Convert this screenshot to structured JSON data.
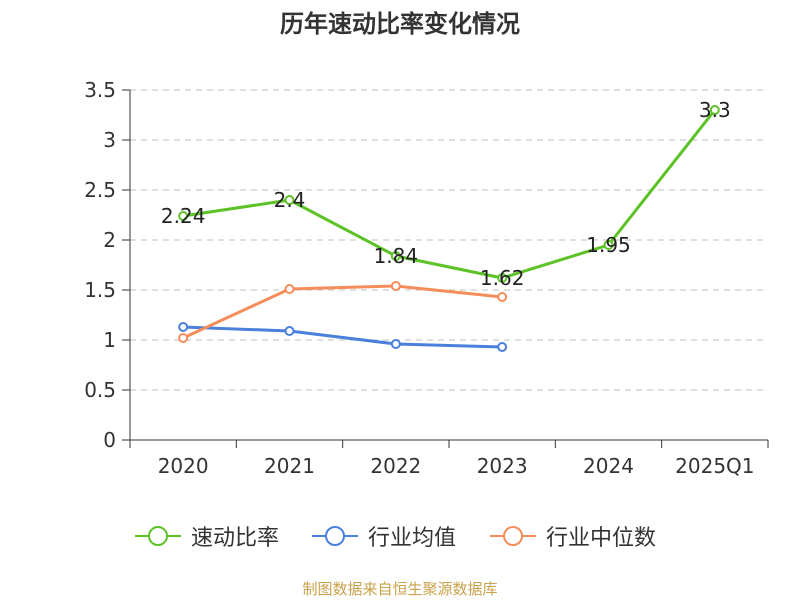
{
  "chart_data": {
    "type": "line",
    "title": "历年速动比率变化情况",
    "categories": [
      "2020",
      "2021",
      "2022",
      "2023",
      "2024",
      "2025Q1"
    ],
    "ylim": [
      0,
      3.5
    ],
    "yticks": [
      0,
      0.5,
      1,
      1.5,
      2,
      2.5,
      3,
      3.5
    ],
    "ytick_labels": [
      "0",
      "0.5",
      "1",
      "1.5",
      "2",
      "2.5",
      "3",
      "3.5"
    ],
    "grid": true,
    "legend_position": "bottom",
    "series": [
      {
        "name": "速动比率",
        "color": "#5cc226",
        "values": [
          2.24,
          2.4,
          1.84,
          1.62,
          1.95,
          3.3
        ],
        "labels": [
          "2.24",
          "2.4",
          "1.84",
          "1.62",
          "1.95",
          "3.3"
        ]
      },
      {
        "name": "行业均值",
        "color": "#4a7fdb",
        "values": [
          1.13,
          1.09,
          0.96,
          0.93,
          null,
          null
        ]
      },
      {
        "name": "行业中位数",
        "color": "#f58c5a",
        "values": [
          1.02,
          1.51,
          1.54,
          1.43,
          null,
          null
        ]
      }
    ]
  },
  "source": "制图数据来自恒生聚源数据库"
}
